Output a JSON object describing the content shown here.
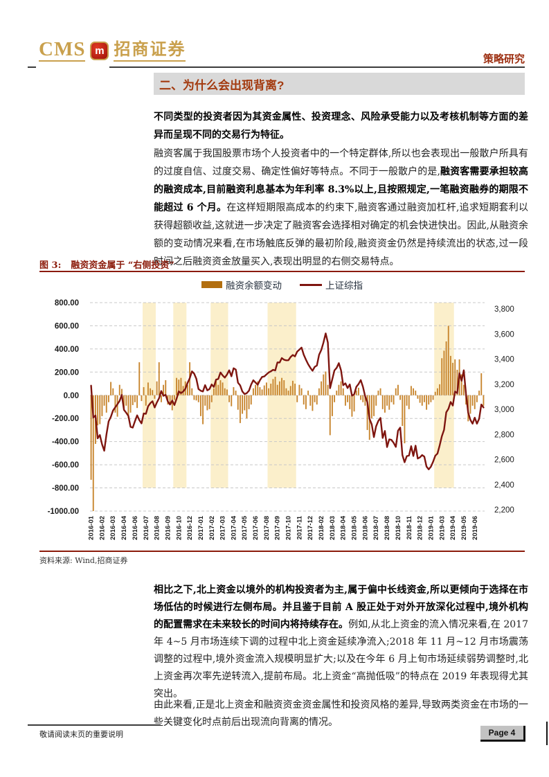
{
  "header": {
    "logo_cms": "CMS",
    "logo_badge_glyph": "m",
    "logo_company": "招商证券",
    "report_type": "策略研究"
  },
  "section": {
    "title": "二、为什么会出现背离?"
  },
  "paragraphs": {
    "p1": [
      {
        "t": "不同类型的投资者因为其资金属性、投资理念、风险承受能力以及考核机制等方面的差异而呈现不同的交易行为特征。",
        "b": true
      }
    ],
    "p2": [
      {
        "t": "融资客属于我国股票市场个人投资者中的一个特定群体,所以也会表现出一般散户所具有的过度自信、过度交易、确定性偏好等特点。不同于一般散户的是,",
        "b": false
      },
      {
        "t": "融资客需要承担较高的融资成本,目前融资利息基本为年利率 8.3%以上,且按照规定,一笔融资融券的期限不能超过 6 个月。",
        "b": true
      },
      {
        "t": "在这样短期限高成本的约束下,融资客通过融资加杠杆,追求短期套利以获得超额收益,这就进一步决定了融资客会选择相对确定的机会快进快出。因此,从融资余额的变动情况来看,在市场触底反弹的最初阶段,融资资金仍然是持续流出的状态,过一段时间之后融资资金放量买入,表现出明显的右侧交易特点。",
        "b": false
      }
    ],
    "p3": [
      {
        "t": "相比之下,北上资金以境外的机构投资者为主,属于偏中长线资金,所以更倾向于选择在市场低估的时候进行左侧布局。并且鉴于目前 A 股正处于对外开放深化过程中,境外机构的配置需求在未来较长的时间内将持续存在。",
        "b": true
      },
      {
        "t": "例如,从北上资金的流入情况来看,在 2017 年 4~5 月市场连续下调的过程中北上资金延续净流入;2018 年 11 月~12 月市场震荡调整的过程中,境外资金流入规模明显扩大;以及在今年 6 月上旬市场延续弱势调整时,北上资金再次率先逆转流入,提前布局。北上资金“高抛低吸”的特点在 2019 年表现得尤其突出。",
        "b": false
      }
    ],
    "p4": [
      {
        "t": "由此来看,正是北上资金和融资资金资金属性和投资风格的差异,导致两类资金在市场的一些关键变化时点前后出现流向背离的情况。",
        "b": false
      }
    ]
  },
  "figure": {
    "caption_label": "图 3:",
    "caption_text": "融资资金属于 “右侧投资”",
    "source": "资料来源: Wind,招商证券"
  },
  "chart_data": {
    "type": "bar",
    "subtype": "weekly bars with overlaid line, dual y-axis",
    "legend": [
      {
        "name": "融资余额变动",
        "kind": "bar",
        "color": "#B26E0F"
      },
      {
        "name": "上证综指",
        "kind": "line",
        "color": "#7E150F"
      }
    ],
    "left_axis": {
      "ticks": [
        "800.00",
        "600.00",
        "400.00",
        "200.00",
        "0.00",
        "-200.00",
        "-400.00",
        "-600.00",
        "-800.00",
        "-1000.00"
      ],
      "max": 800,
      "min": -1000
    },
    "right_axis": {
      "ticks": [
        "3,800",
        "3,600",
        "3,400",
        "3,200",
        "3,000",
        "2,800",
        "2,600",
        "2,400",
        "2,200"
      ],
      "max": 3800,
      "min": 2200
    },
    "x_ticks": [
      "2016-01",
      "2016-02",
      "2016-03",
      "2016-04",
      "2016-06",
      "2016-07",
      "2016-08",
      "2016-09",
      "2016-10",
      "2016-12",
      "2017-01",
      "2017-02",
      "2017-03",
      "2017-04",
      "2017-05",
      "2017-06",
      "2017-08",
      "2017-09",
      "2017-10",
      "2017-11",
      "2017-12",
      "2018-02",
      "2018-03",
      "2018-04",
      "2018-05",
      "2018-06",
      "2018-07",
      "2018-08",
      "2018-10",
      "2018-11",
      "2018-12",
      "2019-01",
      "2019-03",
      "2019-04",
      "2019-05",
      "2019-06"
    ],
    "x_tick_interval": 5,
    "highlight_bands": [
      [
        24,
        29
      ],
      [
        38,
        43
      ],
      [
        55,
        62
      ],
      [
        81,
        93
      ],
      [
        157,
        165
      ]
    ],
    "bars": [
      -730,
      -1000,
      -420,
      -260,
      -250,
      -180,
      -90,
      -150,
      -60,
      115,
      60,
      -150,
      -185,
      90,
      55,
      -120,
      -90,
      -200,
      -150,
      -85,
      -60,
      -110,
      285,
      -50,
      70,
      -90,
      110,
      60,
      45,
      -30,
      120,
      285,
      -60,
      90,
      130,
      -80,
      -65,
      -130,
      -40,
      150,
      135,
      150,
      80,
      120,
      90,
      285,
      60,
      -40,
      -45,
      -60,
      -180,
      -250,
      -90,
      -130,
      -120,
      -60,
      60,
      125,
      90,
      130,
      110,
      60,
      50,
      -60,
      -95,
      70,
      40,
      -125,
      -240,
      -160,
      -130,
      -200,
      -120,
      -80,
      60,
      90,
      120,
      70,
      50,
      85,
      110,
      60,
      100,
      140,
      160,
      90,
      120,
      150,
      130,
      60,
      40,
      80,
      125,
      100,
      -60,
      90,
      60,
      -80,
      -120,
      40,
      -90,
      -135,
      -60,
      -80,
      60,
      120,
      180,
      205,
      90,
      -345,
      -180,
      -60,
      40,
      90,
      120,
      60,
      -90,
      -60,
      -120,
      -185,
      -140,
      40,
      65,
      -40,
      -60,
      -90,
      -300,
      -385,
      -200,
      -180,
      -90,
      40,
      60,
      -120,
      -150,
      -90,
      -125,
      -60,
      -80,
      60,
      90,
      -40,
      -265,
      -415,
      -90,
      -120,
      80,
      60,
      40,
      -30,
      -65,
      -90,
      -60,
      -125,
      -80,
      -60,
      -40,
      30,
      60,
      95,
      320,
      385,
      465,
      600,
      340,
      280,
      310,
      220,
      310,
      180,
      90,
      -80,
      -225,
      -160,
      -90,
      -120,
      -60,
      40,
      190,
      -90
    ],
    "line": [
      3150,
      2900,
      2916,
      2737,
      2763,
      2690,
      2640,
      2767,
      2870,
      2905,
      2955,
      2980,
      3004,
      3030,
      3078,
      2960,
      2938,
      2913,
      2827,
      2821,
      2871,
      2917,
      2880,
      2854,
      2932,
      2929,
      2988,
      3012,
      3028,
      2979,
      3018,
      3051,
      3108,
      3070,
      3078,
      3026,
      3002,
      3033,
      2998,
      3048,
      3105,
      3091,
      3104,
      3125,
      3171,
      3208,
      3262,
      3244,
      3204,
      3123,
      3110,
      3104,
      3154,
      3113,
      3123,
      3159,
      3140,
      3197,
      3202,
      3253,
      3230,
      3213,
      3237,
      3270,
      3223,
      3286,
      3276,
      3173,
      3152,
      3104,
      3084,
      3091,
      3110,
      3158,
      3192,
      3174,
      3157,
      3192,
      3218,
      3222,
      3238,
      3253,
      3262,
      3274,
      3269,
      3332,
      3331,
      3366,
      3353,
      3348,
      3349,
      3374,
      3390,
      3379,
      3416,
      3432,
      3448,
      3392,
      3353,
      3318,
      3290,
      3266,
      3297,
      3308,
      3392,
      3429,
      3488,
      3559,
      3487,
      3130,
      3199,
      3269,
      3289,
      3326,
      3270,
      3153,
      3168,
      3131,
      3159,
      3071,
      3082,
      3141,
      3163,
      3193,
      3141,
      3067,
      3021,
      2890,
      2847,
      2747,
      2831,
      2873,
      2897,
      2740,
      2795,
      2669,
      2729,
      2725,
      2702,
      2670,
      2797,
      2821,
      2606,
      2550,
      2598,
      2602,
      2676,
      2599,
      2680,
      2579,
      2588,
      2606,
      2594,
      2516,
      2494,
      2515,
      2554,
      2601,
      2618,
      2682,
      2754,
      2804,
      2941,
      2969,
      3022,
      2994,
      3104,
      3091,
      3247,
      3188,
      3270,
      3086,
      2939,
      2882,
      2852,
      2899,
      2852,
      2890,
      3002,
      2979
    ],
    "colors": {
      "bar": "#C8862F",
      "line": "#7E150F",
      "band": "#FBEFCB",
      "grid": "#C8C8C8",
      "tick_text": "#1a1a1a"
    }
  },
  "footer": {
    "disclaimer": "敬请阅读末页的重要说明",
    "page_label": "Page 4"
  }
}
